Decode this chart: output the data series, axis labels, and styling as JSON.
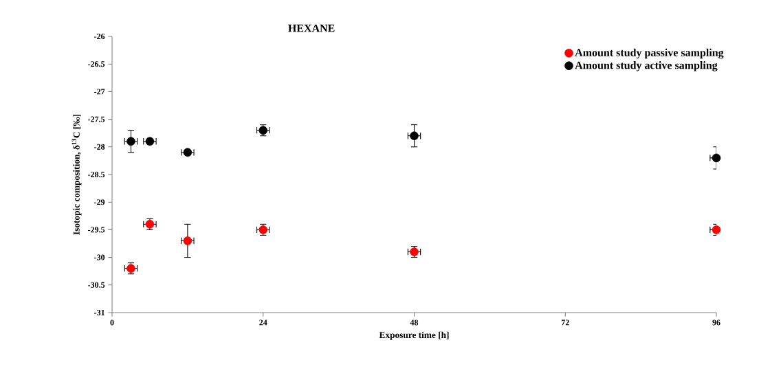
{
  "chart_data": {
    "type": "scatter",
    "title": "HEXANE",
    "xlabel": "Exposure time [h]",
    "ylabel": "Isotopic  composition, δ$^{13}$C [‰]",
    "xlim": [
      0,
      96
    ],
    "xticks": [
      0,
      24,
      48,
      72,
      96
    ],
    "ylim": [
      -31,
      -26
    ],
    "yticks": [
      -31,
      -30.5,
      -30,
      -29.5,
      -29,
      -28.5,
      -28,
      -27.5,
      -27,
      -26.5,
      -26
    ],
    "marker": "circle",
    "legend": "top right",
    "grid": false,
    "series": [
      {
        "name": "Amount study passive sampling",
        "color": "#ff0000",
        "x": [
          3,
          6,
          12,
          24,
          48,
          96
        ],
        "values": [
          -30.2,
          -29.4,
          -29.7,
          -29.5,
          -29.9,
          -29.5
        ],
        "errors": [
          0.1,
          0.1,
          0.3,
          0.1,
          0.1,
          0.1
        ],
        "xerrors": [
          1,
          1,
          1,
          1,
          1,
          1
        ]
      },
      {
        "name": "Amount study active sampling",
        "color": "#000000",
        "x": [
          3,
          6,
          12,
          24,
          48,
          96
        ],
        "values": [
          -27.9,
          -27.9,
          -28.1,
          -27.7,
          -27.8,
          -28.2
        ],
        "errors": [
          0.2,
          null,
          null,
          0.1,
          0.2,
          0.2
        ],
        "xerrors": [
          1,
          1,
          1,
          1,
          1,
          1
        ]
      }
    ]
  }
}
